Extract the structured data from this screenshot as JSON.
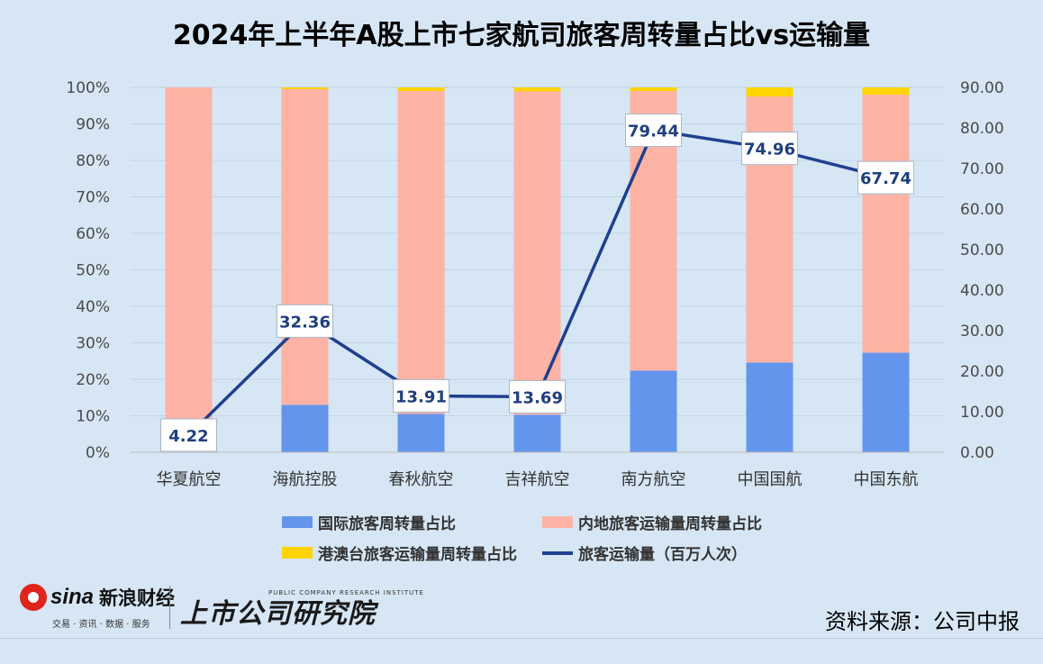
{
  "title": "2024年上半年A股上市七家航司旅客周转量占比vs运输量",
  "chart_data": {
    "type": "bar",
    "stacked": true,
    "categories": [
      "华夏航空",
      "海航控股",
      "春秋航空",
      "吉祥航空",
      "南方航空",
      "中国国航",
      "中国东航"
    ],
    "series": [
      {
        "name": "国际旅客周转量占比",
        "kind": "bar",
        "axis": "left",
        "color": "#6495ed",
        "values": [
          1.3,
          13.0,
          10.5,
          10.3,
          22.4,
          24.6,
          27.3
        ]
      },
      {
        "name": "内地旅客运输量周转量占比",
        "kind": "bar",
        "axis": "left",
        "color": "#ffb3a4",
        "values": [
          98.7,
          86.5,
          88.5,
          88.6,
          76.6,
          72.9,
          70.7
        ]
      },
      {
        "name": "港澳台旅客运输量周转量占比",
        "kind": "bar",
        "axis": "left",
        "color": "#ffd400",
        "values": [
          0.0,
          0.5,
          1.0,
          1.1,
          1.0,
          2.5,
          2.0
        ]
      },
      {
        "name": "旅客运输量（百万人次）",
        "kind": "line",
        "axis": "right",
        "color": "#1f3f8f",
        "values": [
          4.22,
          32.36,
          13.91,
          13.69,
          79.44,
          74.96,
          67.74
        ],
        "labels": [
          "4.22",
          "32.36",
          "13.91",
          "13.69",
          "79.44",
          "74.96",
          "67.74"
        ]
      }
    ],
    "y_left": {
      "ylim": [
        0,
        100
      ],
      "ticks": [
        "0%",
        "10%",
        "20%",
        "30%",
        "40%",
        "50%",
        "60%",
        "70%",
        "80%",
        "90%",
        "100%"
      ]
    },
    "y_right": {
      "ylim": [
        0,
        90
      ],
      "ticks": [
        "0.00",
        "10.00",
        "20.00",
        "30.00",
        "40.00",
        "50.00",
        "60.00",
        "70.00",
        "80.00",
        "90.00"
      ]
    },
    "grid": true,
    "legend_position": "bottom"
  },
  "source": "资料来源：公司中报",
  "logos": {
    "sina_word": "sina",
    "sina_name": "新浪财经",
    "sina_sub": "交易 · 资讯 · 数据 · 服务",
    "research_small": "PUBLIC COMPANY RESEARCH INSTITUTE",
    "research_name": "上市公司研究院"
  }
}
